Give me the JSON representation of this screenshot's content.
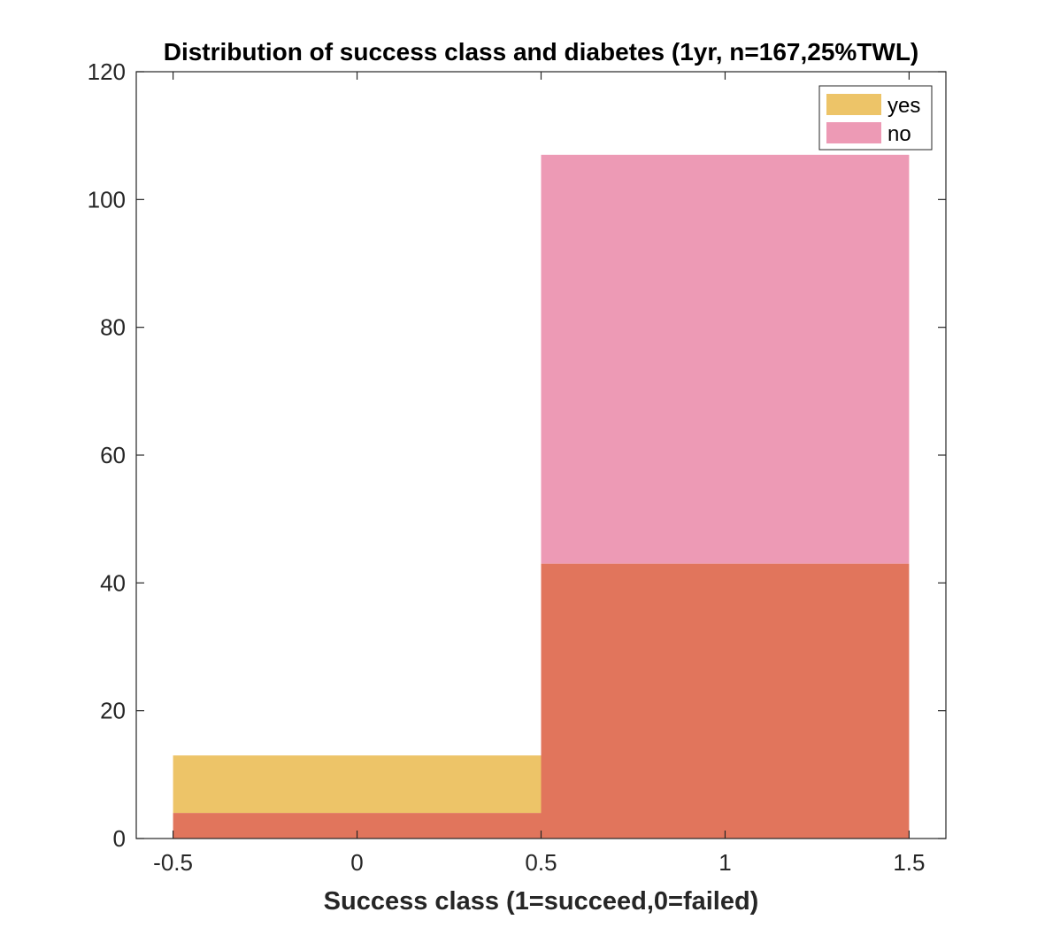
{
  "chart_data": {
    "type": "bar",
    "subtype": "overlaid-histogram",
    "title": "Distribution of success class and diabetes (1yr, n=167,25%TWL)",
    "xlabel": "Success class (1=succeed,0=failed)",
    "ylabel": "",
    "xlim": [
      -0.6,
      1.6
    ],
    "ylim": [
      0,
      120
    ],
    "xticks": [
      -0.5,
      0,
      0.5,
      1,
      1.5
    ],
    "xtick_labels": [
      "-0.5",
      "0",
      "0.5",
      "1",
      "1.5"
    ],
    "yticks": [
      0,
      20,
      40,
      60,
      80,
      100,
      120
    ],
    "ytick_labels": [
      "0",
      "20",
      "40",
      "60",
      "80",
      "100",
      "120"
    ],
    "bin_edges": [
      -0.5,
      0.5,
      1.5
    ],
    "grid": false,
    "legend_position": "top-right",
    "overlap_color": "#e1755c",
    "series": [
      {
        "name": "yes",
        "values": [
          13,
          43
        ],
        "color": "#edc468"
      },
      {
        "name": "no",
        "values": [
          4,
          107
        ],
        "color": "#ed9ab5"
      }
    ]
  }
}
